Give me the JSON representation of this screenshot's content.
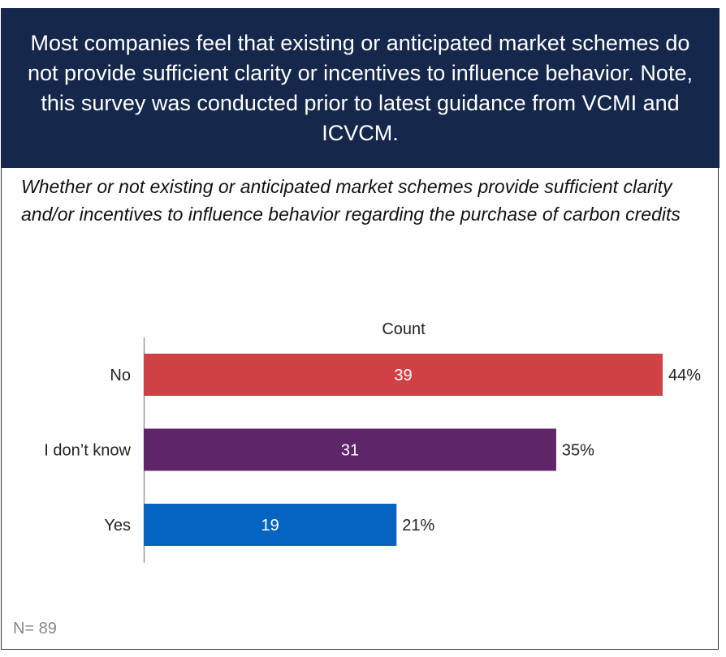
{
  "header": {
    "title": "Most companies feel that existing or anticipated market schemes do not provide sufficient clarity or incentives to influence behavior. Note, this survey was conducted prior to latest guidance from VCMI and ICVCM."
  },
  "subtitle": "Whether or not existing or anticipated market schemes provide sufficient clarity and/or incentives to influence behavior regarding the purchase of carbon credits",
  "note": "N= 89",
  "chart_data": {
    "type": "bar",
    "orientation": "horizontal",
    "title": "Count",
    "categories": [
      "No",
      "I don’t know",
      "Yes"
    ],
    "values": [
      39,
      31,
      19
    ],
    "percent_labels": [
      "44%",
      "35%",
      "21%"
    ],
    "colors": [
      "#d04146",
      "#5e2569",
      "#0563c1"
    ],
    "grid": false,
    "xlim": [
      0,
      39
    ]
  }
}
